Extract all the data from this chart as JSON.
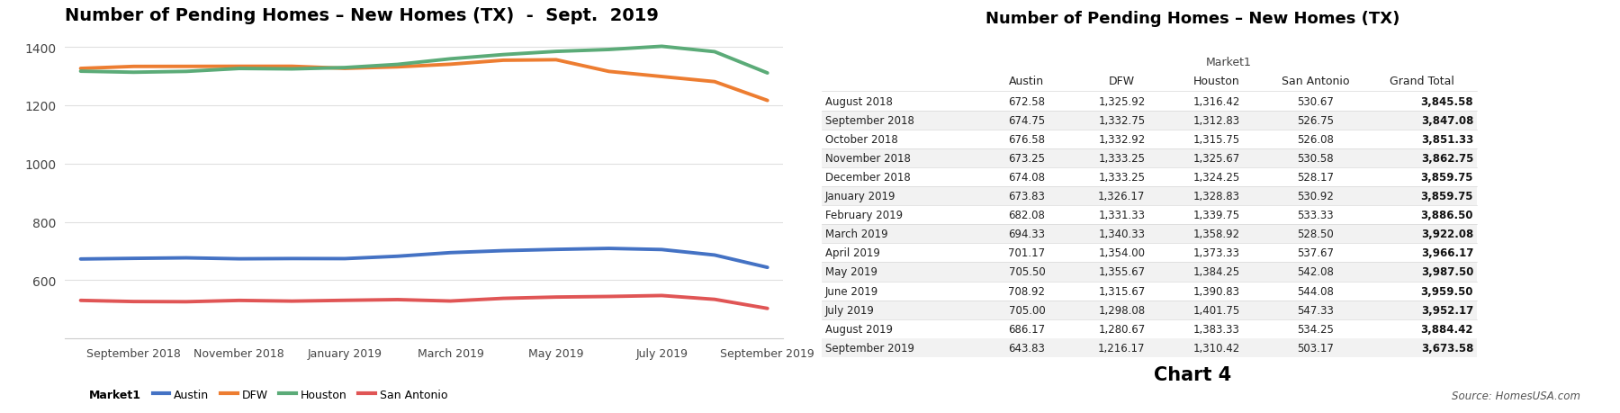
{
  "title_chart": "Number of Pending Homes – New Homes (TX)  -  Sept.  2019",
  "title_table": "Number of Pending Homes – New Homes (TX)",
  "chart_subtitle": "Chart 4",
  "source": "Source: HomesUSA.com",
  "months": [
    "August 2018",
    "September 2018",
    "October 2018",
    "November 2018",
    "December 2018",
    "January 2019",
    "February 2019",
    "March 2019",
    "April 2019",
    "May 2019",
    "June 2019",
    "July 2019",
    "August 2019",
    "September 2019"
  ],
  "x_tick_labels": [
    "September 2018",
    "November 2018",
    "January 2019",
    "March 2019",
    "May 2019",
    "July 2019",
    "September 2019"
  ],
  "x_tick_positions": [
    1,
    3,
    5,
    7,
    9,
    11,
    13
  ],
  "austin": [
    672.58,
    674.75,
    676.58,
    673.25,
    674.08,
    673.83,
    682.08,
    694.33,
    701.17,
    705.5,
    708.92,
    705.0,
    686.17,
    643.83
  ],
  "dfw": [
    1325.92,
    1332.75,
    1332.92,
    1333.25,
    1333.25,
    1326.17,
    1331.33,
    1340.33,
    1354.0,
    1355.67,
    1315.67,
    1298.08,
    1280.67,
    1216.17
  ],
  "houston": [
    1316.42,
    1312.83,
    1315.75,
    1325.67,
    1324.25,
    1328.83,
    1339.75,
    1358.92,
    1373.33,
    1384.25,
    1390.83,
    1401.75,
    1383.33,
    1310.42
  ],
  "san_antonio": [
    530.67,
    526.75,
    526.08,
    530.58,
    528.17,
    530.92,
    533.33,
    528.5,
    537.67,
    542.08,
    544.08,
    547.33,
    534.25,
    503.17
  ],
  "grand_total": [
    3845.58,
    3847.08,
    3851.33,
    3862.75,
    3859.75,
    3859.75,
    3886.5,
    3922.08,
    3966.17,
    3987.5,
    3959.5,
    3952.17,
    3884.42,
    3673.58
  ],
  "line_colors": {
    "Austin": "#4472c4",
    "DFW": "#ed7d31",
    "Houston": "#5bab78",
    "San Antonio": "#e05555"
  },
  "ylim": [
    400,
    1450
  ],
  "yticks": [
    600,
    800,
    1000,
    1200,
    1400
  ],
  "alt_row_color": "#f2f2f2",
  "white": "#ffffff",
  "col_widths": [
    0.2,
    0.12,
    0.12,
    0.12,
    0.13,
    0.14
  ]
}
